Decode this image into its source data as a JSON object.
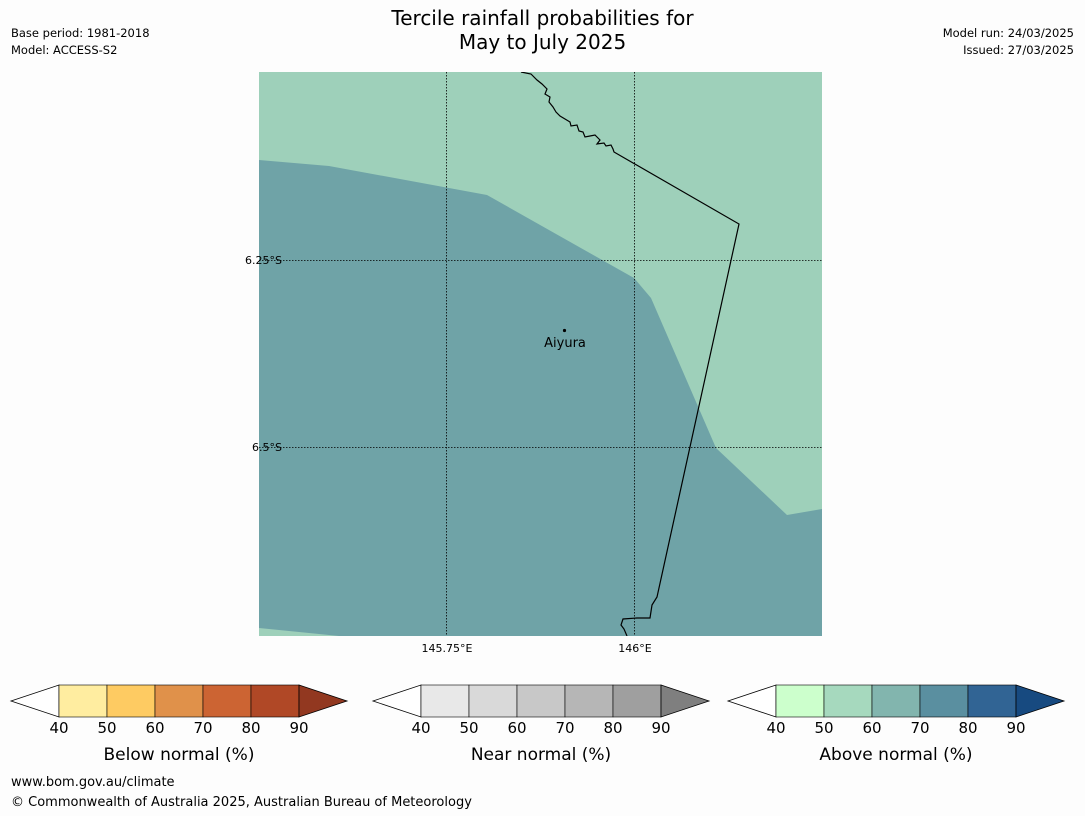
{
  "title_line1": "Tercile rainfall probabilities for",
  "title_line2": "May to July 2025",
  "meta_left": {
    "base_period": "Base period: 1981-2018",
    "model": "Model: ACCESS-S2"
  },
  "meta_right": {
    "model_run": "Model run: 24/03/2025",
    "issued": "Issued: 27/03/2025"
  },
  "map": {
    "latitude_labels": [
      "6.25°S",
      "6.5°S"
    ],
    "longitude_labels": [
      "145.75°E",
      "146°E"
    ],
    "place_label": "Aiyura",
    "colors": {
      "land_region_above_50_60": "#9ed0ba",
      "region_above_70_80": "#6fa3a7",
      "border": "#000000"
    }
  },
  "colorbars": [
    {
      "label": "Below normal (%)",
      "ticks": [
        "40",
        "50",
        "60",
        "70",
        "80",
        "90"
      ],
      "colors": [
        "#ffffff",
        "#ffeda0",
        "#fecb62",
        "#e0914a",
        "#cc6433",
        "#b04826",
        "#923820"
      ]
    },
    {
      "label": "Near normal (%)",
      "ticks": [
        "40",
        "50",
        "60",
        "70",
        "80",
        "90"
      ],
      "colors": [
        "#ffffff",
        "#e8e8e8",
        "#d9d9d9",
        "#c8c8c8",
        "#b6b6b6",
        "#9f9f9f",
        "#7f7f7f"
      ]
    },
    {
      "label": "Above normal (%)",
      "ticks": [
        "40",
        "50",
        "60",
        "70",
        "80",
        "90"
      ],
      "colors": [
        "#ffffff",
        "#ccffcc",
        "#a6d9be",
        "#82b5ae",
        "#5a8fa0",
        "#316494",
        "#174a80"
      ]
    }
  ],
  "footer": {
    "url": "www.bom.gov.au/climate",
    "copyright": "© Commonwealth of Australia 2025, Australian Bureau of Meteorology"
  }
}
